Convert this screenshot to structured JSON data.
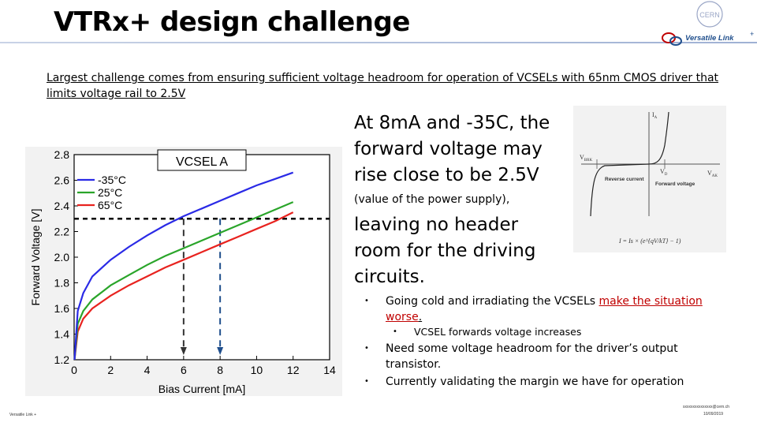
{
  "slide": {
    "title": "VTRx+ design challenge",
    "logo": {
      "cern_text": "CERN",
      "brand_text": "Versatile Link",
      "brand_mark": "+"
    },
    "intro": "Largest challenge comes from ensuring sufficient voltage headroom for operation of VCSELs with 65nm CMOS driver that limits voltage rail to 2.5V",
    "main": {
      "line1": "At 8mA and -35C, the forward voltage may rise close to be 2.5V",
      "note": "(value of the power supply),",
      "line2": "leaving no header room for the driving circuits."
    },
    "bullets": [
      {
        "pre": "Going cold and irradiating the VCSELs ",
        "emph": "make the situation worse",
        "post": "."
      },
      {
        "sub": "VCSEL forwards voltage increases"
      },
      {
        "text": "Need some voltage headroom for the driver’s output transistor."
      },
      {
        "text": "Currently validating the margin we have for operation"
      }
    ],
    "footer": {
      "left": "Versatile Link +",
      "right_email": "sxxxxxxxxxxxxxx@cern.ch",
      "right_date": "10/09/2019"
    },
    "diode_figure": {
      "i_label": "I",
      "i_sub": "A",
      "vbr_label": "V",
      "vbr_sub": "BRK",
      "vd_label": "V",
      "vd_sub": "D",
      "v_label": "V",
      "v_sub": "AK",
      "reverse_label": "Reverse current",
      "forward_label": "Forward voltage",
      "equation": "I = Is × (e^{qV/kT} − 1)"
    },
    "colors": {
      "red": "#e8231f",
      "green": "#2aa52a",
      "blue": "#2a2ae6",
      "accent_red": "#c00000"
    }
  },
  "chart_data": {
    "type": "line",
    "title": "",
    "annotation": "VCSEL A",
    "xlabel": "Bias Current [mA]",
    "ylabel": "Forward Voltage [V]",
    "xlim": [
      0,
      14
    ],
    "ylim": [
      1.2,
      2.8
    ],
    "xticks": [
      "0",
      "2",
      "4",
      "6",
      "8",
      "10",
      "12",
      "14"
    ],
    "yticks": [
      "1.2",
      "1.4",
      "1.6",
      "1.8",
      "2.0",
      "2.2",
      "2.4",
      "2.6",
      "2.8"
    ],
    "series": [
      {
        "name": "65°C",
        "color": "#e8231f",
        "x": [
          0.02,
          0.2,
          0.5,
          1,
          2,
          3,
          4,
          5,
          6,
          7,
          8,
          9,
          10,
          11,
          12
        ],
        "y": [
          1.2,
          1.42,
          1.52,
          1.6,
          1.7,
          1.78,
          1.85,
          1.92,
          1.98,
          2.04,
          2.1,
          2.16,
          2.22,
          2.28,
          2.35
        ]
      },
      {
        "name": "25°C",
        "color": "#2aa52a",
        "x": [
          0.02,
          0.2,
          0.5,
          1,
          2,
          3,
          4,
          5,
          6,
          7,
          8,
          9,
          10,
          11,
          12
        ],
        "y": [
          1.2,
          1.48,
          1.58,
          1.67,
          1.78,
          1.86,
          1.94,
          2.01,
          2.07,
          2.13,
          2.19,
          2.25,
          2.31,
          2.37,
          2.43
        ]
      },
      {
        "name": "-35°C",
        "color": "#2a2ae6",
        "x": [
          0.02,
          0.2,
          0.5,
          1,
          2,
          3,
          4,
          5,
          6,
          7,
          8,
          9,
          10,
          11,
          12
        ],
        "y": [
          1.2,
          1.58,
          1.72,
          1.85,
          1.98,
          2.08,
          2.17,
          2.25,
          2.32,
          2.38,
          2.44,
          2.5,
          2.56,
          2.61,
          2.66
        ]
      }
    ],
    "reference_line_y": 2.3,
    "markers": [
      {
        "x": 6,
        "color": "#333333"
      },
      {
        "x": 8,
        "color": "#1f4e8c"
      }
    ],
    "legend": "top-left",
    "grid": false
  }
}
